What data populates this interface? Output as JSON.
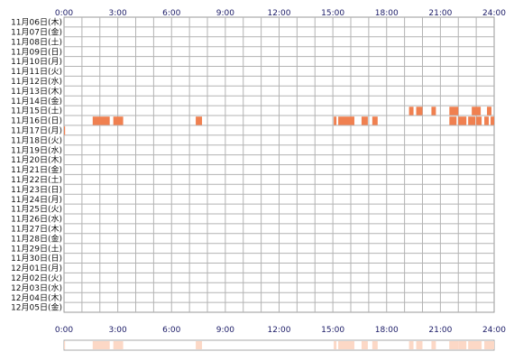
{
  "chart_data": {
    "type": "heatmap",
    "title": "",
    "xlabel": "",
    "ylabel": "",
    "x_ticks": [
      "0:00",
      "3:00",
      "6:00",
      "9:00",
      "12:00",
      "15:00",
      "18:00",
      "21:00",
      "24:00"
    ],
    "x_range_hours": [
      0,
      24
    ],
    "grid": true,
    "activity_color": "#f08050",
    "summary_color": "#fcd8c6",
    "rows": [
      {
        "label": "11月06日(木)",
        "blocks": []
      },
      {
        "label": "11月07日(金)",
        "blocks": []
      },
      {
        "label": "11月08日(土)",
        "blocks": []
      },
      {
        "label": "11月09日(日)",
        "blocks": []
      },
      {
        "label": "11月10日(月)",
        "blocks": []
      },
      {
        "label": "11月11日(火)",
        "blocks": []
      },
      {
        "label": "11月12日(水)",
        "blocks": []
      },
      {
        "label": "11月13日(木)",
        "blocks": []
      },
      {
        "label": "11月14日(金)",
        "blocks": []
      },
      {
        "label": "11月15日(土)",
        "blocks": [
          [
            19.25,
            19.5
          ],
          [
            19.65,
            20.0
          ],
          [
            20.5,
            20.75
          ],
          [
            21.5,
            22.0
          ],
          [
            22.75,
            23.25
          ],
          [
            23.6,
            23.85
          ]
        ]
      },
      {
        "label": "11月16日(日)",
        "blocks": [
          [
            1.6,
            2.55
          ],
          [
            2.75,
            3.3
          ],
          [
            7.35,
            7.7
          ],
          [
            15.05,
            15.2
          ],
          [
            15.3,
            16.2
          ],
          [
            16.6,
            16.95
          ],
          [
            17.2,
            17.5
          ],
          [
            21.5,
            21.9
          ],
          [
            22.0,
            22.45
          ],
          [
            22.55,
            22.95
          ],
          [
            23.0,
            23.3
          ],
          [
            23.45,
            23.7
          ],
          [
            23.8,
            24.0
          ]
        ]
      },
      {
        "label": "11月17日(月)",
        "blocks": [
          [
            0.0,
            0.06
          ]
        ]
      },
      {
        "label": "11月18日(火)",
        "blocks": []
      },
      {
        "label": "11月19日(水)",
        "blocks": []
      },
      {
        "label": "11月20日(木)",
        "blocks": []
      },
      {
        "label": "11月21日(金)",
        "blocks": []
      },
      {
        "label": "11月22日(土)",
        "blocks": []
      },
      {
        "label": "11月23日(日)",
        "blocks": []
      },
      {
        "label": "11月24日(月)",
        "blocks": []
      },
      {
        "label": "11月25日(火)",
        "blocks": []
      },
      {
        "label": "11月26日(水)",
        "blocks": []
      },
      {
        "label": "11月27日(木)",
        "blocks": []
      },
      {
        "label": "11月28日(金)",
        "blocks": []
      },
      {
        "label": "11月29日(土)",
        "blocks": []
      },
      {
        "label": "11月30日(日)",
        "blocks": []
      },
      {
        "label": "12月01日(月)",
        "blocks": []
      },
      {
        "label": "12月02日(火)",
        "blocks": []
      },
      {
        "label": "12月03日(水)",
        "blocks": []
      },
      {
        "label": "12月04日(木)",
        "blocks": []
      },
      {
        "label": "12月05日(金)",
        "blocks": []
      }
    ]
  }
}
